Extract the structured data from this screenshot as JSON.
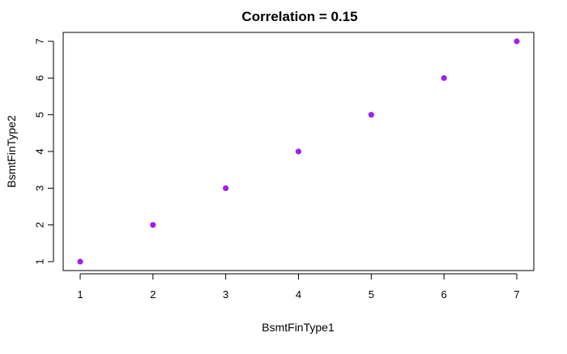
{
  "chart_data": {
    "type": "scatter",
    "title": "Correlation =  0.15",
    "xlabel": "BsmtFinType1",
    "ylabel": "BsmtFinType2",
    "xlim": [
      1,
      7
    ],
    "ylim": [
      1,
      7
    ],
    "x_ticks": [
      "1",
      "2",
      "3",
      "4",
      "5",
      "6",
      "7"
    ],
    "y_ticks": [
      "1",
      "2",
      "3",
      "4",
      "5",
      "6",
      "7"
    ],
    "grid": false,
    "legend": "none",
    "point_color": "#a020f0",
    "points": [
      {
        "x": 1,
        "y": 1
      },
      {
        "x": 2,
        "y": 2
      },
      {
        "x": 3,
        "y": 3
      },
      {
        "x": 4,
        "y": 4
      },
      {
        "x": 5,
        "y": 5
      },
      {
        "x": 6,
        "y": 6
      },
      {
        "x": 7,
        "y": 7
      }
    ]
  }
}
